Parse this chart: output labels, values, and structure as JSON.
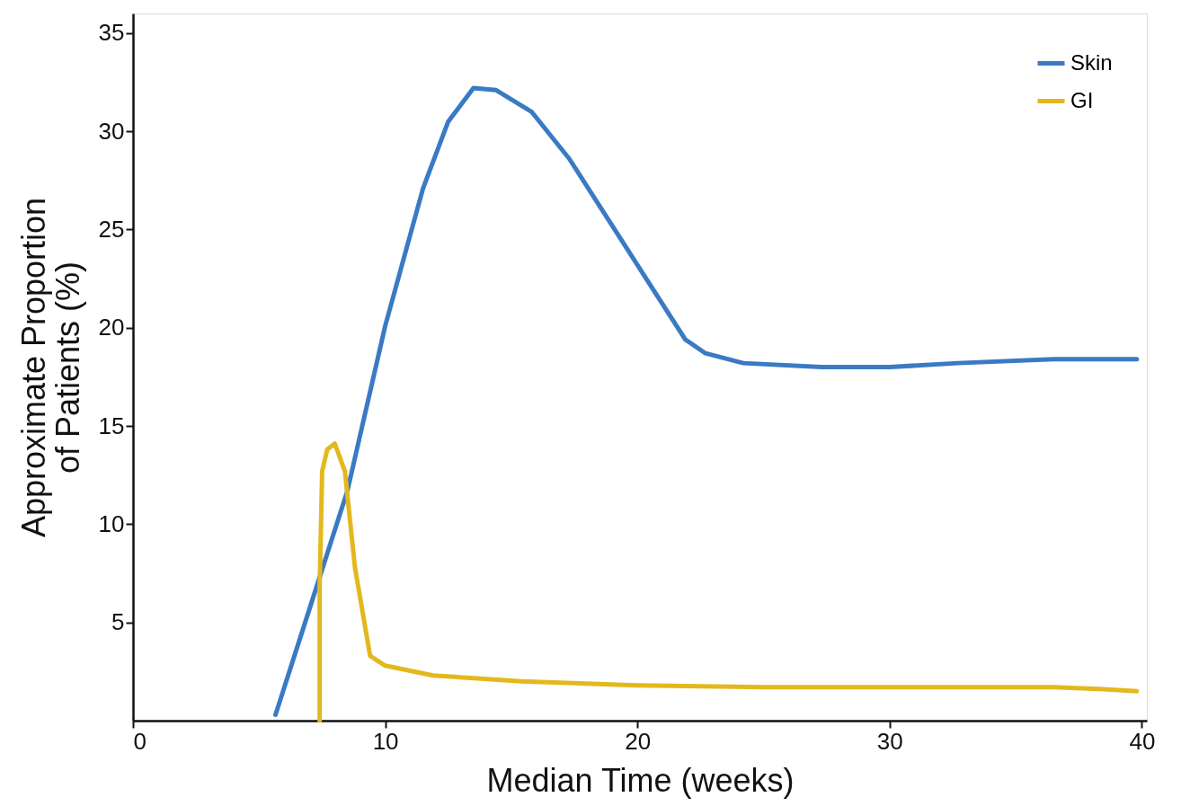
{
  "chart_data": {
    "type": "line",
    "xlabel": "Median Time (weeks)",
    "ylabel": "Approximate Proportion\nof Patients (%)",
    "xlim": [
      0,
      40.2
    ],
    "xticks": [
      0,
      10,
      20,
      30,
      40
    ],
    "ylim": [
      0,
      36
    ],
    "yticks": [
      5,
      10,
      15,
      20,
      25,
      30,
      35
    ],
    "grid": false,
    "legend": "top right",
    "marker": "none",
    "line_style": "solid",
    "series": [
      {
        "name": "Skin",
        "color": "#3a7ac4",
        "x": [
          5.65,
          6.9,
          8.5,
          10,
          11.5,
          12.5,
          13.5,
          14.4,
          15.8,
          17.3,
          18.8,
          20.8,
          21.9,
          22.7,
          24.2,
          27.3,
          30,
          32.7,
          36.5,
          39.8
        ],
        "values": [
          0.3,
          5.3,
          11.7,
          20.1,
          27.1,
          30.5,
          32.2,
          32.1,
          31.0,
          28.6,
          25.6,
          21.6,
          19.4,
          18.7,
          18.2,
          18.0,
          18.0,
          18.2,
          18.4,
          18.4
        ]
      },
      {
        "name": "GI",
        "color": "#e3b81e",
        "x": [
          7.4,
          7.4,
          7.5,
          7.7,
          8.0,
          8.4,
          8.8,
          9.4,
          10,
          11.9,
          15.4,
          20,
          25,
          30,
          36.5,
          38.5,
          39.8
        ],
        "values": [
          0,
          6.8,
          12.7,
          13.8,
          14.1,
          12.7,
          7.8,
          3.3,
          2.8,
          2.3,
          2.0,
          1.8,
          1.7,
          1.7,
          1.7,
          1.6,
          1.5
        ]
      }
    ]
  }
}
